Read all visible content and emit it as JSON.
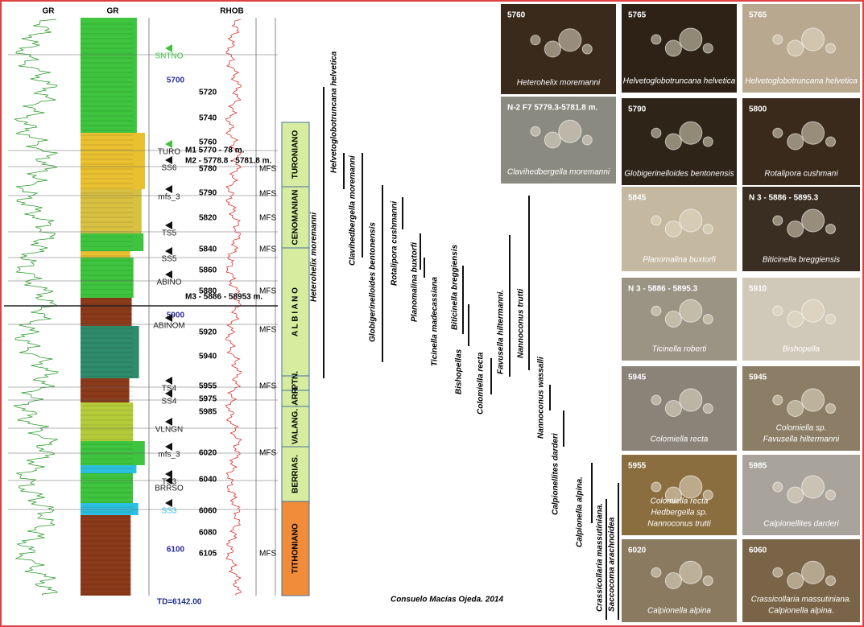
{
  "headers": {
    "gr_curve": "GR",
    "gr_litho": "GR",
    "rhob": "RHOB"
  },
  "big_depths": [
    "5700",
    "5900",
    "6100"
  ],
  "depths": [
    "5720",
    "5740",
    "5760",
    "5780",
    "5790",
    "5820",
    "5840",
    "5860",
    "5880",
    "5920",
    "5940",
    "5955",
    "5975",
    "5985",
    "6020",
    "6040",
    "6060",
    "6080",
    "6105"
  ],
  "markers": [
    "SNTNO",
    "TURO",
    "SS6",
    "mfs_3",
    "TS5",
    "SS5",
    "ABINO",
    "ABINOM",
    "TS4",
    "SS4",
    "VLNGN",
    "mfs_3",
    "TS3",
    "BRRSO",
    "SS3"
  ],
  "samples": [
    "M1 5770 - 78 m.",
    "M2 - 5778.8 - 5781.8 m.",
    "M3 - 5886 - 58953 m."
  ],
  "mfs": [
    "MFS",
    "MFS",
    "MFS",
    "MFS",
    "MFS",
    "MFS",
    "MFS",
    "MFS",
    "MFS"
  ],
  "stages": [
    "TURONIANO",
    "CENOMANIAN",
    "A L B I A N O",
    "APTN.",
    "BARR.",
    "VALANG.",
    "BERRIAS.",
    "TITHONIANO"
  ],
  "species": [
    "Heterohelix moremanni",
    "Helvetoglobotruncana helvetica",
    "Clavihedbergella moremanni",
    "Globigerinelloides bentonensis",
    "Rotalipora cushmanni",
    "Planomalina buxtorfi",
    "Ticinella madecassiana",
    "Biticinella breggiensis",
    "Bishopellas",
    "Colomiella recta",
    "Favusella hiltermanni.",
    "Nannoconus trutti",
    "Nannoconus wassalli",
    "Calpionellites darderi",
    "Calpionella alpina.",
    "Crassicollaria massutiniana.",
    "Saccocoma arachnoidea"
  ],
  "photos": [
    {
      "label": "5760",
      "captions": [
        "Heterohelix moremanni"
      ]
    },
    {
      "label": "5765",
      "captions": [
        "Helvetoglobotruncana helvetica"
      ]
    },
    {
      "label": "5765",
      "captions": [
        "Helvetoglobotruncana helvetica"
      ]
    },
    {
      "label": "N-2 F7 5779.3-5781.8 m.",
      "captions": [
        "Clavihedbergella moremanni"
      ]
    },
    {
      "label": "5790",
      "captions": [
        "Globigerinelloides bentonensis"
      ]
    },
    {
      "label": "5800",
      "captions": [
        "Rotalipora cushmani"
      ]
    },
    {
      "label": "5845",
      "captions": [
        "Planomalina buxtorfi"
      ]
    },
    {
      "label": "N 3 - 5886 - 5895.3",
      "captions": [
        "Biticinella breggiensis"
      ]
    },
    {
      "label": "N 3 - 5886 - 5895.3",
      "captions": [
        "Ticinella roberti"
      ]
    },
    {
      "label": "5910",
      "captions": [
        "Bishopella"
      ]
    },
    {
      "label": "5945",
      "captions": [
        "Colomiella recta"
      ]
    },
    {
      "label": "5945",
      "captions": [
        "Colomiella sp.",
        "Favusella hiltermanni"
      ]
    },
    {
      "label": "5955",
      "captions": [
        "Colomiella recta",
        "Hedbergella sp.",
        "Nannoconus trutti"
      ]
    },
    {
      "label": "5985",
      "captions": [
        "Calpionellites darderi"
      ]
    },
    {
      "label": "6020",
      "captions": [
        "Calpionella alpina"
      ]
    },
    {
      "label": "6060",
      "captions": [
        "Crassicollaria massutiniana.",
        "Calpionella alpina."
      ]
    }
  ],
  "total_depth": "TD=6142.00",
  "credit": "Consuelo Macías Ojeda. 2014"
}
